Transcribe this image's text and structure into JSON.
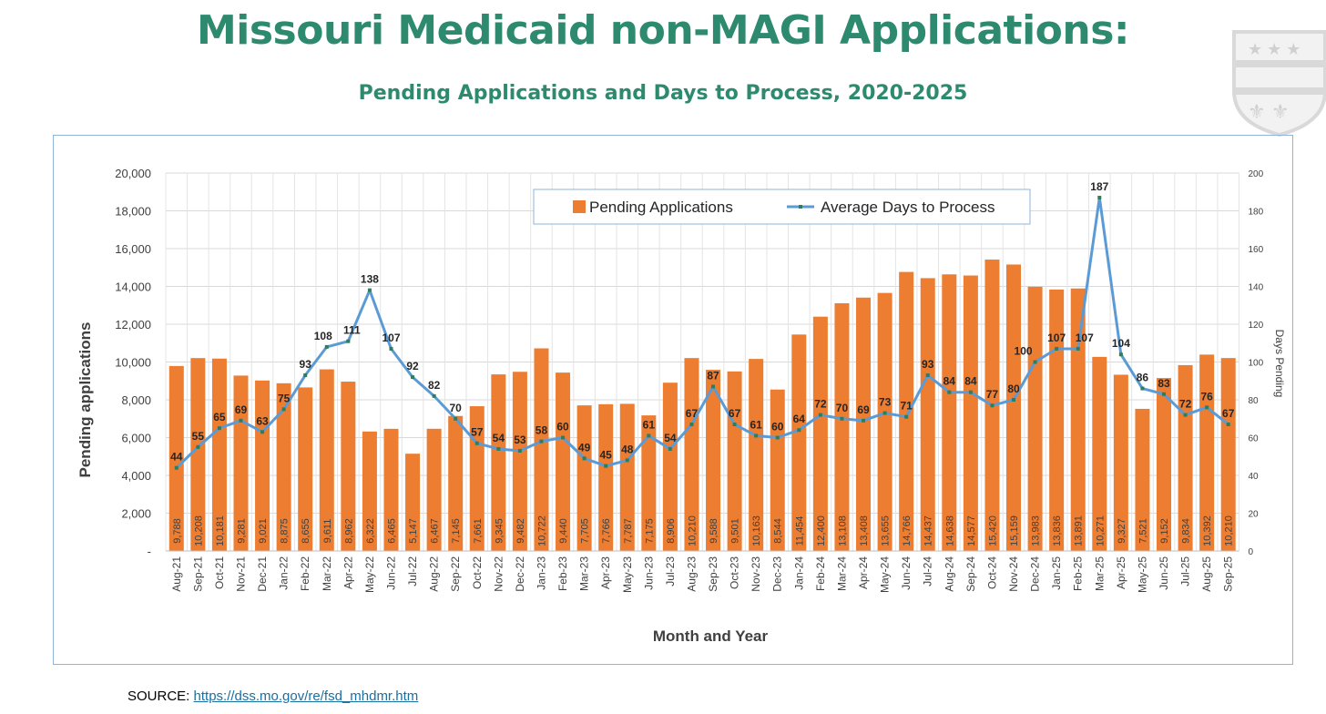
{
  "header": {
    "title": "Missouri Medicaid non-MAGI Applications:",
    "subtitle": "Pending Applications and Days to Process, 2020-2025"
  },
  "footer": {
    "source_label": "SOURCE: ",
    "source_link": "https://dss.mo.gov/re/fsd_mhdmr.htm"
  },
  "colors": {
    "bars": "#ed7d31",
    "line": "#5b9bd5",
    "title": "#2d8a6e",
    "marker": "#2e7d5b"
  },
  "chart_data": {
    "type": "bar+line",
    "title": "Missouri Medicaid non-MAGI Applications:",
    "subtitle": "Pending Applications and Days to Process, 2020-2025",
    "xlabel": "Month and Year",
    "ylabel": "Pending applications",
    "y2label": "Days Pending",
    "ylim": [
      0,
      20000
    ],
    "y2lim": [
      0,
      200
    ],
    "yticks": [
      "-",
      "2,000",
      "4,000",
      "6,000",
      "8,000",
      "10,000",
      "12,000",
      "14,000",
      "16,000",
      "18,000",
      "20,000"
    ],
    "y2ticks": [
      "0",
      "20",
      "40",
      "60",
      "80",
      "100",
      "120",
      "140",
      "160",
      "180",
      "200"
    ],
    "grid": true,
    "legend_position": "top-center",
    "categories": [
      "Aug-21",
      "Sep-21",
      "Oct-21",
      "Nov-21",
      "Dec-21",
      "Jan-22",
      "Feb-22",
      "Mar-22",
      "Apr-22",
      "May-22",
      "Jun-22",
      "Jul-22",
      "Aug-22",
      "Sep-22",
      "Oct-22",
      "Nov-22",
      "Dec-22",
      "Jan-23",
      "Feb-23",
      "Mar-23",
      "Apr-23",
      "May-23",
      "Jun-23",
      "Jul-23",
      "Aug-23",
      "Sep-23",
      "Oct-23",
      "Nov-23",
      "Dec-23",
      "Jan-24",
      "Feb-24",
      "Mar-24",
      "Apr-24",
      "May-24",
      "Jun-24",
      "Jul-24",
      "Aug-24",
      "Sep-24",
      "Oct-24",
      "Nov-24",
      "Dec-24",
      "Jan-25",
      "Feb-25",
      "Mar-25",
      "Apr-25",
      "May-25",
      "Jun-25",
      "Jul-25",
      "Aug-25",
      "Sep-25"
    ],
    "series": [
      {
        "name": "Pending Applications",
        "type": "bar",
        "axis": "left",
        "values": [
          9788,
          10208,
          10181,
          9281,
          9021,
          8875,
          8655,
          9611,
          8962,
          6322,
          6465,
          5147,
          6467,
          7145,
          7661,
          9345,
          9482,
          10722,
          9440,
          7705,
          7766,
          7787,
          7175,
          8906,
          10210,
          9588,
          9501,
          10163,
          8544,
          11454,
          12400,
          13108,
          13408,
          13655,
          14766,
          14437,
          14638,
          14577,
          15420,
          15159,
          13983,
          13836,
          13891,
          10271,
          9327,
          7521,
          9152,
          9834,
          10392,
          10210
        ]
      },
      {
        "name": "Average Days to Process",
        "type": "line",
        "axis": "right",
        "values": [
          44,
          55,
          65,
          69,
          63,
          75,
          93,
          108,
          111,
          138,
          107,
          92,
          82,
          70,
          57,
          54,
          53,
          58,
          60,
          49,
          45,
          48,
          61,
          54,
          67,
          87,
          67,
          61,
          60,
          64,
          72,
          70,
          69,
          73,
          71,
          93,
          84,
          84,
          77,
          80,
          100,
          107,
          107,
          187,
          104,
          86,
          83,
          72,
          76,
          67
        ]
      }
    ]
  }
}
